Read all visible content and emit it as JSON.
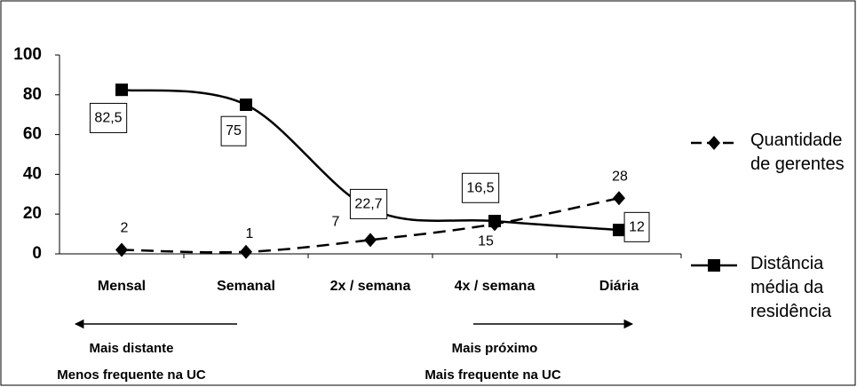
{
  "chart_data": {
    "type": "line",
    "categories": [
      "Mensal",
      "Semanal",
      "2x / semana",
      "4x / semana",
      "Diária"
    ],
    "series": [
      {
        "name": "Quantidade de gerentes",
        "color": "#000000",
        "dashed": true,
        "marker": "diamond",
        "values": [
          2,
          1,
          7,
          15,
          28
        ],
        "value_labels": [
          "2",
          "1",
          "7",
          "15",
          "28"
        ]
      },
      {
        "name": "Distância média da residência",
        "color": "#000000",
        "dashed": false,
        "marker": "square",
        "values": [
          82.5,
          75,
          22.7,
          16.5,
          12
        ],
        "value_labels": [
          "82,5",
          "75",
          "22,7",
          "16,5",
          "12"
        ]
      }
    ],
    "ylim": [
      0,
      100
    ],
    "yticks": [
      0,
      20,
      40,
      60,
      80,
      100
    ],
    "grid": false,
    "annotations": [
      "Mais distante",
      "Menos frequente na UC",
      "Mais próximo",
      "Mais frequente na UC"
    ]
  }
}
